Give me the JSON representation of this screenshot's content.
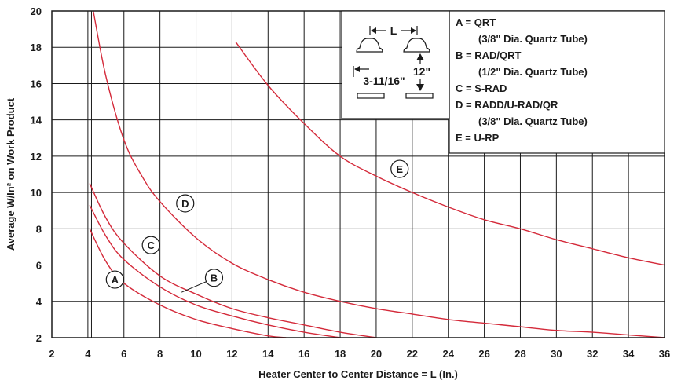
{
  "chart_data": {
    "type": "line",
    "title": "",
    "xlabel": "Heater Center to Center Distance = L (In.)",
    "ylabel": "Average W/In² on Work Product",
    "xlim": [
      2,
      36
    ],
    "ylim": [
      2,
      20
    ],
    "x_ticks": [
      "2",
      "4",
      "6",
      "8",
      "10",
      "12",
      "14",
      "16",
      "18",
      "20",
      "22",
      "24",
      "26",
      "28",
      "30",
      "32",
      "34",
      "36"
    ],
    "y_ticks": [
      "2",
      "4",
      "6",
      "8",
      "10",
      "12",
      "14",
      "16",
      "18",
      "20"
    ],
    "grid": true,
    "line_color": "#d42a3a",
    "series": [
      {
        "name": "A",
        "x": [
          4.1,
          5,
          6,
          8,
          10,
          12,
          14,
          15
        ],
        "y": [
          8.0,
          6.2,
          5.0,
          3.8,
          3.0,
          2.5,
          2.1,
          2.0
        ]
      },
      {
        "name": "B",
        "x": [
          4.1,
          5,
          6,
          8,
          10,
          12,
          14,
          16,
          18
        ],
        "y": [
          9.3,
          7.6,
          6.3,
          4.8,
          3.8,
          3.2,
          2.7,
          2.3,
          2.0
        ]
      },
      {
        "name": "C",
        "x": [
          4.1,
          5,
          6,
          8,
          10,
          12,
          14,
          16,
          18,
          20
        ],
        "y": [
          10.5,
          8.6,
          7.2,
          5.4,
          4.4,
          3.6,
          3.1,
          2.7,
          2.3,
          2.0
        ]
      },
      {
        "name": "D",
        "x": [
          4.3,
          5,
          6,
          7,
          8,
          10,
          12,
          14,
          16,
          18,
          20,
          22,
          24,
          26,
          28,
          30,
          32,
          34,
          36
        ],
        "y": [
          20.0,
          16.4,
          12.9,
          10.9,
          9.5,
          7.5,
          6.1,
          5.2,
          4.5,
          4.0,
          3.6,
          3.3,
          3.0,
          2.8,
          2.6,
          2.4,
          2.3,
          2.15,
          2.0
        ]
      },
      {
        "name": "E",
        "x": [
          12.2,
          14,
          16,
          18,
          20,
          22,
          24,
          26,
          28,
          30,
          32,
          34,
          36
        ],
        "y": [
          18.3,
          15.9,
          13.8,
          12.0,
          10.9,
          10.0,
          9.2,
          8.5,
          8.0,
          7.4,
          6.9,
          6.4,
          6.0
        ]
      }
    ],
    "curve_labels": [
      {
        "name": "A",
        "text": "A",
        "x": 5.5,
        "y": 5.2
      },
      {
        "name": "B",
        "text": "B",
        "x": 11.0,
        "y": 5.3
      },
      {
        "name": "C",
        "text": "C",
        "x": 7.5,
        "y": 7.1
      },
      {
        "name": "D",
        "text": "D",
        "x": 9.4,
        "y": 9.4
      },
      {
        "name": "E",
        "text": "E",
        "x": 21.3,
        "y": 11.3
      }
    ],
    "legend": {
      "placement": "top-right",
      "lines": [
        "A = QRT",
        "(3/8\" Dia. Quartz Tube)",
        "B = RAD/QRT",
        "(1/2\" Dia. Quartz Tube)",
        "C = S-RAD",
        "D = RADD/U-RAD/QR",
        "(3/8\" Dia. Quartz Tube)",
        "E = U-RP"
      ]
    },
    "diagram": {
      "spacing_label": "L",
      "height_label": "12\"",
      "offset_label": "3-11/16\""
    }
  }
}
